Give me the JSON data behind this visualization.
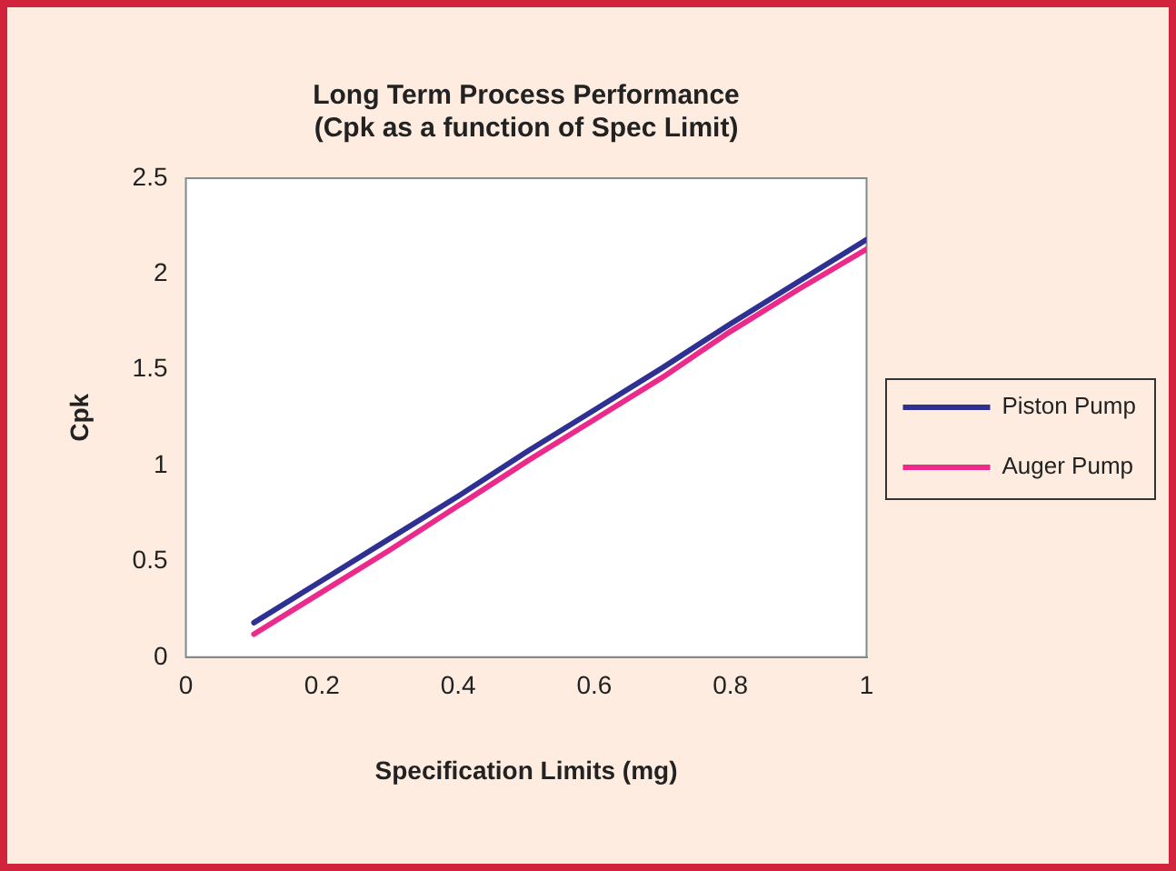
{
  "chart_data": {
    "type": "line",
    "title": "Long Term Process Performance\n(Cpk as a function of Spec Limit)",
    "xlabel": "Specification Limits (mg)",
    "ylabel": "Cpk",
    "x": [
      0.1,
      0.2,
      0.3,
      0.4,
      0.5,
      0.6,
      0.7,
      0.8,
      0.9,
      1
    ],
    "series": [
      {
        "name": "Piston Pump",
        "color": "#2e3192",
        "values": [
          0.18,
          0.4,
          0.62,
          0.84,
          1.07,
          1.29,
          1.51,
          1.74,
          1.96,
          2.18
        ]
      },
      {
        "name": "Auger Pump",
        "color": "#ec2a8c",
        "values": [
          0.12,
          0.34,
          0.56,
          0.79,
          1.02,
          1.24,
          1.46,
          1.7,
          1.92,
          2.13
        ]
      }
    ],
    "xlim": [
      0,
      1
    ],
    "xticks": [
      0,
      0.2,
      0.4,
      0.6,
      0.8,
      1
    ],
    "ylim": [
      0,
      2.5
    ],
    "yticks": [
      0,
      0.5,
      1,
      1.5,
      2,
      2.5
    ],
    "legend": "right",
    "marker": "none",
    "line_style": "solid"
  }
}
